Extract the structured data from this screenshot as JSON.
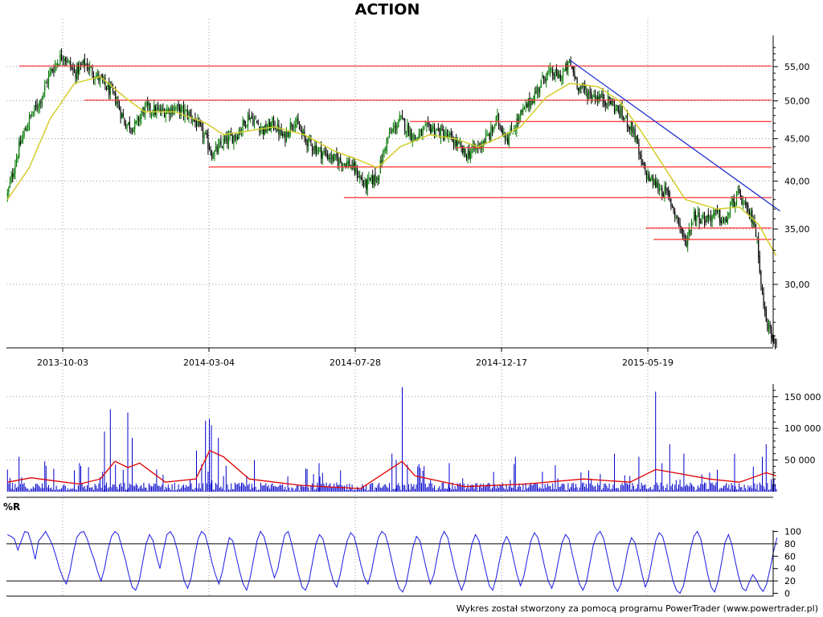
{
  "title": "ACTION",
  "footer": "Wykres został stworzony za pomocą programu PowerTrader (www.powertrader.pl)",
  "colors": {
    "up_candle": "#007a00",
    "down_candle": "#000000",
    "moving_average": "#d4cc2a",
    "levels": "#ff4040",
    "trendline": "#2030d0",
    "volume_bars": "#0000cc",
    "volume_average": "#e00000",
    "williams_r": "#1a1ae6",
    "grid": "#999999"
  },
  "chart_data": [
    {
      "type": "candlestick",
      "panel": "price",
      "title": "ACTION",
      "x_tick_labels": [
        "2013-10-03",
        "2014-03-04",
        "2014-07-28",
        "2014-12-17",
        "2015-05-19"
      ],
      "y_tick_labels": [
        "55,00",
        "50,00",
        "45,00",
        "40,00",
        "35,00",
        "30,00"
      ],
      "y_ticks": [
        55,
        50,
        45,
        40,
        35,
        30
      ],
      "scale": "log",
      "ylim": [
        25.2,
        60.0
      ],
      "close_path": [
        [
          "2013-08-08",
          38.5
        ],
        [
          "2013-08-20",
          44.0
        ],
        [
          "2013-08-30",
          47.5
        ],
        [
          "2013-09-10",
          50.0
        ],
        [
          "2013-09-20",
          54.0
        ],
        [
          "2013-10-03",
          57.0
        ],
        [
          "2013-10-15",
          54.0
        ],
        [
          "2013-10-25",
          55.5
        ],
        [
          "2013-11-10",
          53.0
        ],
        [
          "2013-11-25",
          50.5
        ],
        [
          "2013-12-05",
          47.0
        ],
        [
          "2013-12-15",
          46.5
        ],
        [
          "2013-12-25",
          49.0
        ],
        [
          "2014-01-10",
          48.5
        ],
        [
          "2014-01-25",
          49.0
        ],
        [
          "2014-02-10",
          48.0
        ],
        [
          "2014-02-25",
          45.0
        ],
        [
          "2014-03-04",
          43.0
        ],
        [
          "2014-03-15",
          44.5
        ],
        [
          "2014-03-28",
          45.5
        ],
        [
          "2014-04-10",
          48.0
        ],
        [
          "2014-04-25",
          46.0
        ],
        [
          "2014-05-05",
          47.0
        ],
        [
          "2014-05-15",
          45.0
        ],
        [
          "2014-05-25",
          47.5
        ],
        [
          "2014-06-05",
          45.0
        ],
        [
          "2014-06-20",
          43.5
        ],
        [
          "2014-07-05",
          42.5
        ],
        [
          "2014-07-20",
          42.0
        ],
        [
          "2014-07-28",
          41.0
        ],
        [
          "2014-08-05",
          39.5
        ],
        [
          "2014-08-18",
          40.5
        ],
        [
          "2014-08-28",
          45.0
        ],
        [
          "2014-09-10",
          47.5
        ],
        [
          "2014-09-25",
          45.0
        ],
        [
          "2014-10-10",
          46.5
        ],
        [
          "2014-10-25",
          45.5
        ],
        [
          "2014-11-05",
          44.5
        ],
        [
          "2014-11-15",
          43.0
        ],
        [
          "2014-11-28",
          44.0
        ],
        [
          "2014-12-10",
          45.5
        ],
        [
          "2014-12-17",
          47.5
        ],
        [
          "2014-12-28",
          45.0
        ],
        [
          "2015-01-10",
          48.0
        ],
        [
          "2015-01-25",
          51.0
        ],
        [
          "2015-02-05",
          54.0
        ],
        [
          "2015-02-20",
          53.5
        ],
        [
          "2015-03-01",
          55.5
        ],
        [
          "2015-03-10",
          52.0
        ],
        [
          "2015-03-20",
          51.0
        ],
        [
          "2015-03-30",
          50.5
        ],
        [
          "2015-04-10",
          50.0
        ],
        [
          "2015-04-20",
          48.5
        ],
        [
          "2015-05-05",
          46.0
        ],
        [
          "2015-05-12",
          42.0
        ],
        [
          "2015-05-19",
          40.5
        ],
        [
          "2015-05-28",
          39.5
        ],
        [
          "2015-06-08",
          38.5
        ],
        [
          "2015-06-20",
          35.5
        ],
        [
          "2015-06-26",
          33.5
        ],
        [
          "2015-07-05",
          36.5
        ],
        [
          "2015-07-15",
          36.0
        ],
        [
          "2015-07-28",
          36.5
        ],
        [
          "2015-08-05",
          35.5
        ],
        [
          "2015-08-12",
          37.5
        ],
        [
          "2015-08-20",
          38.5
        ],
        [
          "2015-08-28",
          36.5
        ],
        [
          "2015-09-03",
          36.0
        ],
        [
          "2015-09-08",
          33.0
        ],
        [
          "2015-09-12",
          29.0
        ],
        [
          "2015-09-16",
          27.0
        ],
        [
          "2015-09-22",
          26.0
        ],
        [
          "2015-09-26",
          25.8
        ]
      ],
      "moving_average": [
        [
          "2013-08-08",
          38.0
        ],
        [
          "2013-08-30",
          41.5
        ],
        [
          "2013-09-20",
          47.5
        ],
        [
          "2013-10-15",
          52.5
        ],
        [
          "2013-11-10",
          53.5
        ],
        [
          "2013-12-05",
          50.5
        ],
        [
          "2013-12-25",
          48.5
        ],
        [
          "2014-01-25",
          48.5
        ],
        [
          "2014-02-25",
          47.0
        ],
        [
          "2014-03-15",
          45.5
        ],
        [
          "2014-04-10",
          46.0
        ],
        [
          "2014-05-05",
          46.5
        ],
        [
          "2014-06-05",
          45.5
        ],
        [
          "2014-07-05",
          43.5
        ],
        [
          "2014-07-28",
          42.5
        ],
        [
          "2014-08-18",
          41.5
        ],
        [
          "2014-09-10",
          44.0
        ],
        [
          "2014-10-10",
          45.5
        ],
        [
          "2014-11-05",
          45.0
        ],
        [
          "2014-11-28",
          44.0
        ],
        [
          "2014-12-17",
          45.0
        ],
        [
          "2015-01-10",
          46.5
        ],
        [
          "2015-02-05",
          50.5
        ],
        [
          "2015-03-01",
          52.5
        ],
        [
          "2015-03-30",
          52.0
        ],
        [
          "2015-04-20",
          50.0
        ],
        [
          "2015-05-12",
          46.0
        ],
        [
          "2015-06-08",
          41.0
        ],
        [
          "2015-06-26",
          38.0
        ],
        [
          "2015-07-28",
          37.0
        ],
        [
          "2015-08-20",
          37.2
        ],
        [
          "2015-09-08",
          35.5
        ],
        [
          "2015-09-26",
          32.5
        ]
      ],
      "horizontal_levels": [
        {
          "value": 55.1,
          "from": "2013-08-20",
          "to": "2015-09-30"
        },
        {
          "value": 50.1,
          "from": "2013-10-25",
          "to": "2015-09-30"
        },
        {
          "value": 47.2,
          "from": "2014-09-20",
          "to": "2015-09-30"
        },
        {
          "value": 43.9,
          "from": "2014-11-05",
          "to": "2015-09-30"
        },
        {
          "value": 41.6,
          "from": "2014-02-28",
          "to": "2015-09-30"
        },
        {
          "value": 38.2,
          "from": "2014-07-15",
          "to": "2015-09-30"
        },
        {
          "value": 35.1,
          "from": "2015-05-17",
          "to": "2015-09-30"
        },
        {
          "value": 34.0,
          "from": "2015-05-25",
          "to": "2015-09-30"
        }
      ],
      "trendline": [
        [
          "2015-03-01",
          56.0
        ],
        [
          "2015-09-30",
          36.8
        ]
      ]
    },
    {
      "type": "bar",
      "panel": "volume",
      "y_tick_labels": [
        "150 000",
        "100 000",
        "50 000"
      ],
      "y_ticks": [
        150000,
        100000,
        50000
      ],
      "ylim": [
        0,
        170000
      ],
      "spikes": [
        [
          "2013-08-10",
          22000
        ],
        [
          "2013-08-20",
          55000
        ],
        [
          "2013-09-15",
          48000
        ],
        [
          "2013-10-20",
          45000
        ],
        [
          "2013-11-14",
          95000
        ],
        [
          "2013-11-20",
          130000
        ],
        [
          "2013-12-08",
          125000
        ],
        [
          "2013-12-12",
          85000
        ],
        [
          "2014-02-15",
          65000
        ],
        [
          "2014-02-25",
          112000
        ],
        [
          "2014-02-28",
          115000
        ],
        [
          "2014-03-03",
          105000
        ],
        [
          "2014-03-10",
          85000
        ],
        [
          "2014-04-15",
          50000
        ],
        [
          "2014-06-20",
          45000
        ],
        [
          "2014-09-02",
          60000
        ],
        [
          "2014-09-06",
          50000
        ],
        [
          "2014-09-12",
          165000
        ],
        [
          "2014-10-30",
          45000
        ],
        [
          "2015-01-05",
          55000
        ],
        [
          "2015-04-15",
          60000
        ],
        [
          "2015-05-10",
          55000
        ],
        [
          "2015-05-27",
          158000
        ],
        [
          "2015-06-10",
          75000
        ],
        [
          "2015-06-25",
          60000
        ],
        [
          "2015-08-15",
          60000
        ],
        [
          "2015-09-12",
          55000
        ],
        [
          "2015-09-16",
          75000
        ]
      ],
      "average_path": [
        [
          "2013-08-08",
          15000
        ],
        [
          "2013-09-01",
          22000
        ],
        [
          "2013-09-20",
          18000
        ],
        [
          "2013-10-20",
          12000
        ],
        [
          "2013-11-10",
          20000
        ],
        [
          "2013-11-25",
          48000
        ],
        [
          "2013-12-08",
          38000
        ],
        [
          "2013-12-20",
          45000
        ],
        [
          "2014-01-15",
          15000
        ],
        [
          "2014-02-15",
          20000
        ],
        [
          "2014-03-01",
          65000
        ],
        [
          "2014-03-15",
          55000
        ],
        [
          "2014-04-10",
          20000
        ],
        [
          "2014-06-01",
          10000
        ],
        [
          "2014-08-01",
          5000
        ],
        [
          "2014-09-12",
          48000
        ],
        [
          "2014-09-25",
          25000
        ],
        [
          "2014-11-15",
          8000
        ],
        [
          "2015-01-15",
          12000
        ],
        [
          "2015-03-15",
          20000
        ],
        [
          "2015-05-01",
          15000
        ],
        [
          "2015-05-27",
          35000
        ],
        [
          "2015-06-15",
          30000
        ],
        [
          "2015-07-20",
          20000
        ],
        [
          "2015-08-20",
          15000
        ],
        [
          "2015-09-16",
          30000
        ],
        [
          "2015-09-26",
          25000
        ]
      ]
    },
    {
      "type": "line",
      "panel": "oscillator",
      "title": "%R",
      "y_tick_labels": [
        "100",
        "80",
        "60",
        "40",
        "20",
        "0"
      ],
      "y_ticks": [
        100,
        80,
        60,
        40,
        20,
        0
      ],
      "ylim": [
        -2,
        102
      ],
      "reference_lines": [
        80,
        20
      ],
      "series": [
        {
          "values": [
            95,
            92,
            88,
            70,
            85,
            100,
            98,
            80,
            55,
            85,
            92,
            100,
            90,
            78,
            60,
            40,
            25,
            15,
            35,
            65,
            90,
            98,
            100,
            88,
            70,
            55,
            35,
            20,
            40,
            70,
            92,
            100,
            95,
            75,
            55,
            30,
            10,
            5,
            20,
            50,
            80,
            95,
            85,
            60,
            40,
            70,
            95,
            100,
            90,
            70,
            45,
            20,
            8,
            25,
            60,
            88,
            100,
            95,
            75,
            50,
            30,
            15,
            35,
            65,
            90,
            85,
            60,
            35,
            15,
            5,
            25,
            55,
            85,
            100,
            92,
            70,
            45,
            25,
            40,
            70,
            95,
            100,
            80,
            55,
            30,
            10,
            5,
            20,
            50,
            80,
            95,
            88,
            65,
            40,
            20,
            10,
            30,
            60,
            85,
            98,
            92,
            70,
            45,
            25,
            15,
            35,
            65,
            90,
            100,
            95,
            75,
            50,
            25,
            8,
            2,
            15,
            45,
            75,
            92,
            85,
            60,
            35,
            15,
            30,
            60,
            88,
            100,
            90,
            65,
            40,
            20,
            5,
            20,
            50,
            80,
            95,
            85,
            60,
            35,
            12,
            5,
            25,
            55,
            80,
            92,
            80,
            55,
            30,
            12,
            28,
            58,
            85,
            98,
            90,
            68,
            42,
            20,
            8,
            25,
            55,
            82,
            95,
            88,
            62,
            38,
            15,
            5,
            18,
            48,
            78,
            94,
            100,
            88,
            62,
            35,
            12,
            3,
            15,
            42,
            72,
            90,
            82,
            58,
            32,
            10,
            25,
            55,
            85,
            98,
            92,
            70,
            45,
            20,
            5,
            0,
            12,
            40,
            70,
            92,
            100,
            88,
            60,
            30,
            10,
            2,
            20,
            50,
            82,
            95,
            78,
            50,
            25,
            8,
            4,
            18,
            30,
            22,
            10,
            3,
            15,
            40,
            68,
            90
          ]
        }
      ]
    }
  ]
}
